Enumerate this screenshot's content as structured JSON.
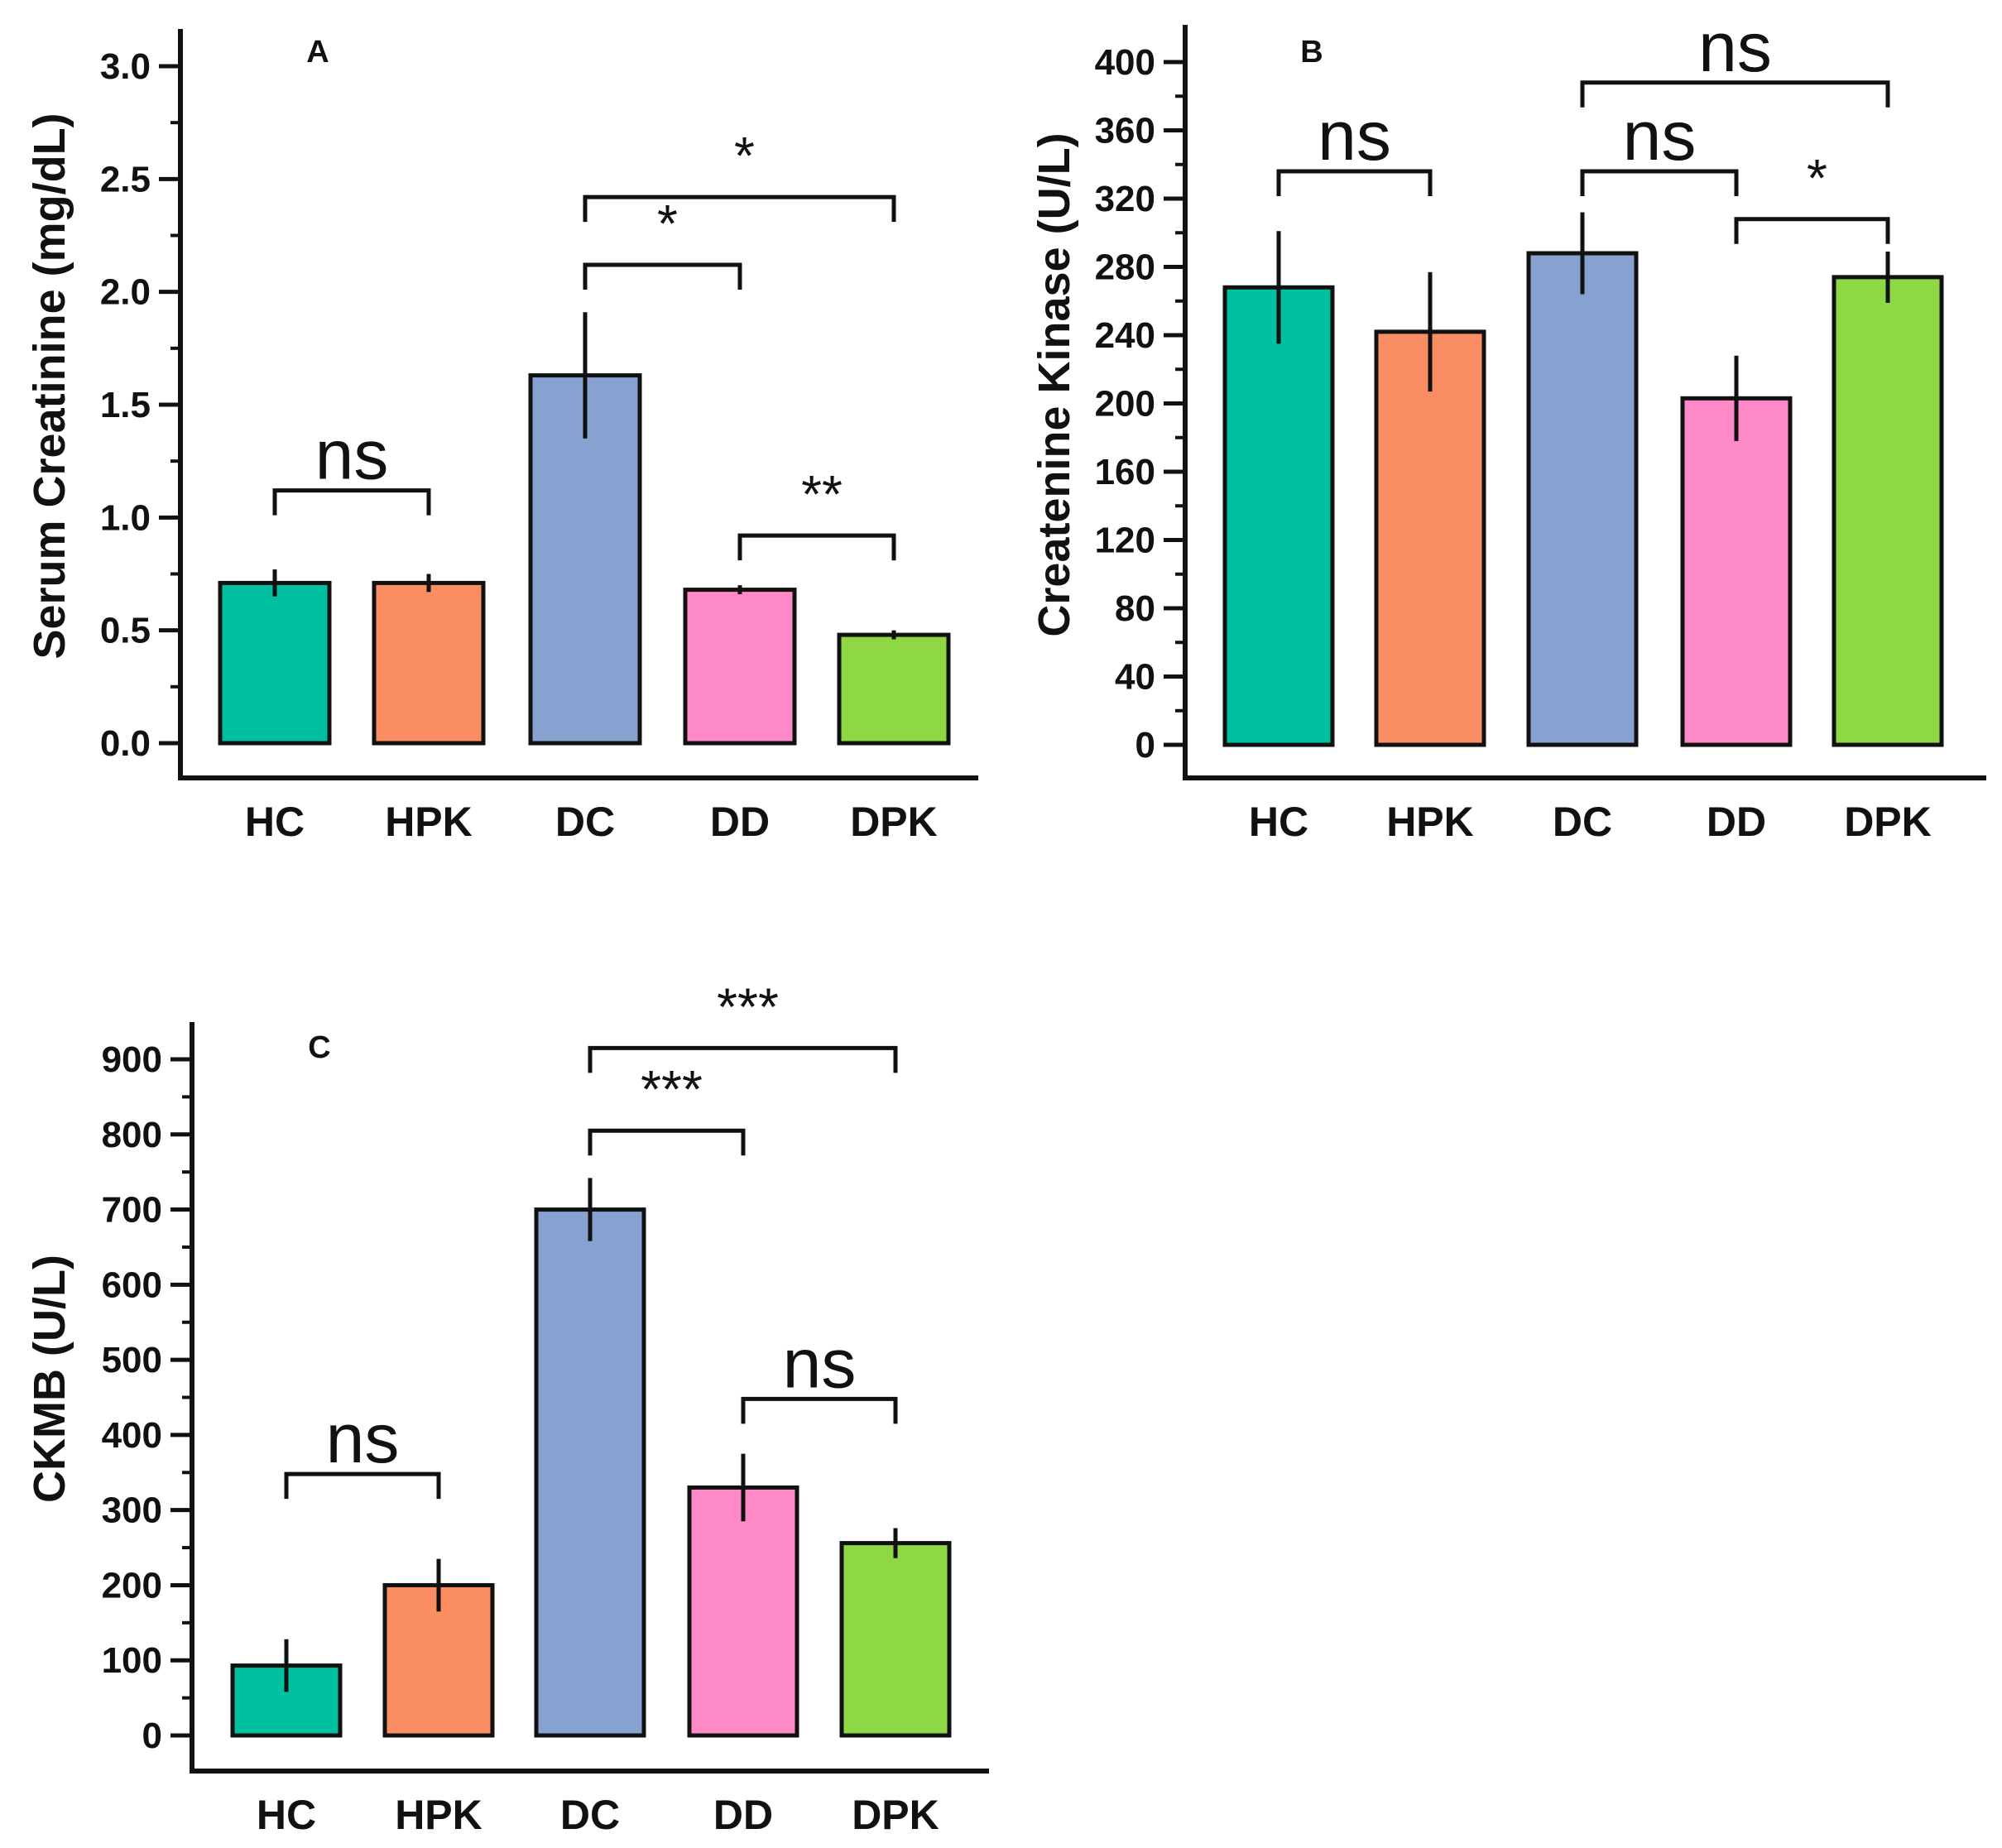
{
  "colors": {
    "HC": "#00c0a0",
    "HPK": "#fb8d62",
    "DC": "#87a2d0",
    "DD": "#fd89c6",
    "DPK": "#8fd845",
    "axis": "#111111"
  },
  "chart_data": [
    {
      "id": "A",
      "type": "bar",
      "panel_label": "A",
      "categories": [
        "HC",
        "HPK",
        "DC",
        "DD",
        "DPK"
      ],
      "values": [
        0.71,
        0.71,
        1.63,
        0.68,
        0.48
      ],
      "errors": [
        0.06,
        0.04,
        0.28,
        0.02,
        0.02
      ],
      "ylabel": "Serum Creatinine (mg/dL)",
      "xlabel": "",
      "ylim": [
        0,
        3.0
      ],
      "yticks": [
        0.0,
        0.5,
        1.0,
        1.5,
        2.0,
        2.5,
        3.0
      ],
      "ytick_labels": [
        "0.0",
        "0.5",
        "1.0",
        "1.5",
        "2.0",
        "2.5",
        "3.0"
      ],
      "brackets": [
        {
          "from": 0,
          "to": 1,
          "y": 1.12,
          "label": "ns"
        },
        {
          "from": 2,
          "to": 3,
          "y": 2.12,
          "label": "*"
        },
        {
          "from": 2,
          "to": 4,
          "y": 2.42,
          "label": "*"
        },
        {
          "from": 3,
          "to": 4,
          "y": 0.92,
          "label": "**"
        }
      ]
    },
    {
      "id": "B",
      "type": "bar",
      "panel_label": "B",
      "categories": [
        "HC",
        "HPK",
        "DC",
        "DD",
        "DPK"
      ],
      "values": [
        268,
        242,
        288,
        203,
        274
      ],
      "errors": [
        33,
        35,
        24,
        25,
        15
      ],
      "ylabel": "Createnine Kinase (U/L)",
      "xlabel": "",
      "ylim": [
        0,
        400
      ],
      "yticks": [
        0,
        40,
        80,
        120,
        160,
        200,
        240,
        280,
        320,
        360,
        400
      ],
      "ytick_labels": [
        "0",
        "40",
        "80",
        "120",
        "160",
        "200",
        "240",
        "280",
        "320",
        "360",
        "400"
      ],
      "brackets": [
        {
          "from": 0,
          "to": 1,
          "y": 336,
          "label": "ns"
        },
        {
          "from": 2,
          "to": 3,
          "y": 336,
          "label": "ns"
        },
        {
          "from": 2,
          "to": 4,
          "y": 388,
          "label": "ns"
        },
        {
          "from": 3,
          "to": 4,
          "y": 308,
          "label": "*"
        }
      ]
    },
    {
      "id": "C",
      "type": "bar",
      "panel_label": "C",
      "categories": [
        "HC",
        "HPK",
        "DC",
        "DD",
        "DPK"
      ],
      "values": [
        93,
        200,
        700,
        330,
        256
      ],
      "errors": [
        35,
        35,
        42,
        45,
        20
      ],
      "ylabel": "CKMB (U/L)",
      "xlabel": "",
      "ylim": [
        0,
        900
      ],
      "yticks": [
        0,
        100,
        200,
        300,
        400,
        500,
        600,
        700,
        800,
        900
      ],
      "ytick_labels": [
        "0",
        "100",
        "200",
        "300",
        "400",
        "500",
        "600",
        "700",
        "800",
        "900"
      ],
      "brackets": [
        {
          "from": 0,
          "to": 1,
          "y": 348,
          "label": "ns"
        },
        {
          "from": 2,
          "to": 3,
          "y": 805,
          "label": "***"
        },
        {
          "from": 2,
          "to": 4,
          "y": 915,
          "label": "***"
        },
        {
          "from": 3,
          "to": 4,
          "y": 448,
          "label": "ns"
        }
      ]
    }
  ]
}
